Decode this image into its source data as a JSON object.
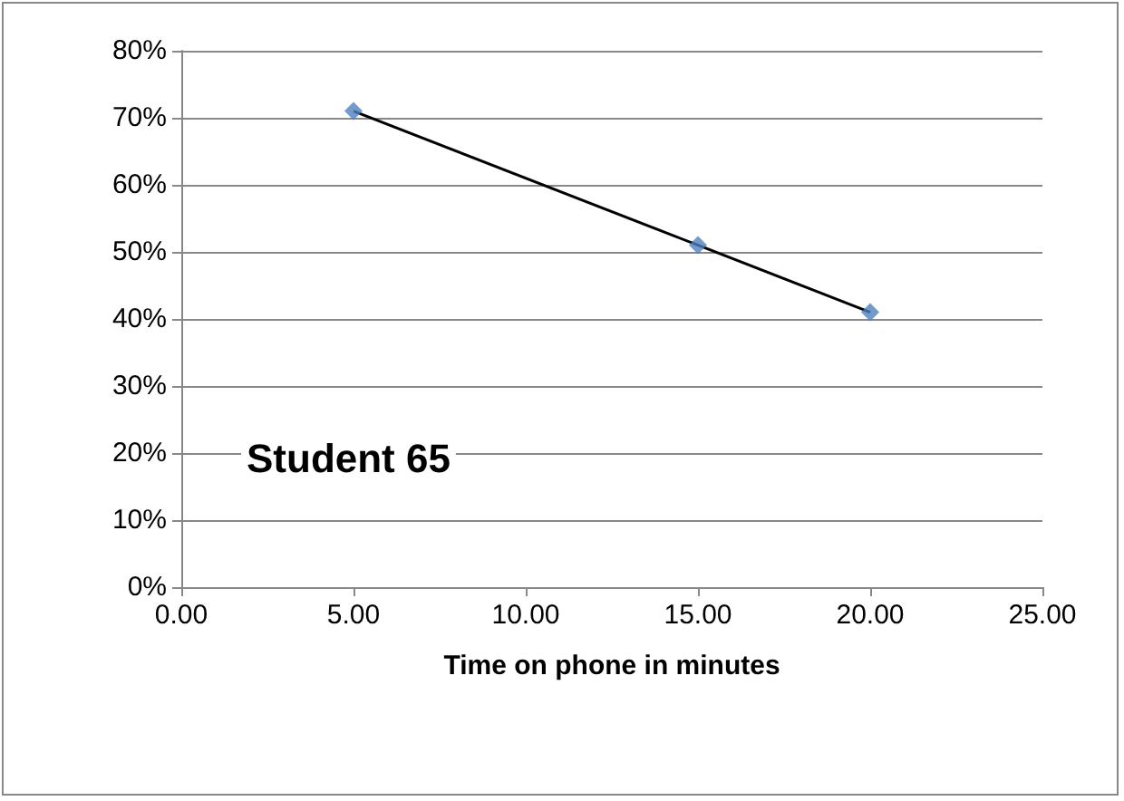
{
  "chart_data": {
    "type": "scatter",
    "xlabel": "Time on phone in minutes",
    "annotations": [
      "Student 65"
    ],
    "x": [
      5,
      15,
      20
    ],
    "series": [
      {
        "color": "#4f81bd",
        "marker": "diamond",
        "values": [
          71,
          51,
          41
        ]
      },
      {
        "type": "line",
        "color": "#000000",
        "marker": "none",
        "x": [
          5,
          20
        ],
        "values": [
          71,
          41
        ]
      }
    ],
    "xlim": [
      0,
      25
    ],
    "xticks": [
      {
        "value": 0,
        "label": "0.00"
      },
      {
        "value": 5,
        "label": "5.00"
      },
      {
        "value": 10,
        "label": "10.00"
      },
      {
        "value": 15,
        "label": "15.00"
      },
      {
        "value": 20,
        "label": "20.00"
      },
      {
        "value": 25,
        "label": "25.00"
      }
    ],
    "ylim": [
      0,
      80
    ],
    "yticks": [
      {
        "value": 0,
        "label": "0%"
      },
      {
        "value": 10,
        "label": "10%"
      },
      {
        "value": 20,
        "label": "20%"
      },
      {
        "value": 30,
        "label": "30%"
      },
      {
        "value": 40,
        "label": "40%"
      },
      {
        "value": 50,
        "label": "50%"
      },
      {
        "value": 60,
        "label": "60%"
      },
      {
        "value": 70,
        "label": "70%"
      },
      {
        "value": 80,
        "label": "80%"
      }
    ],
    "grid": "y"
  }
}
